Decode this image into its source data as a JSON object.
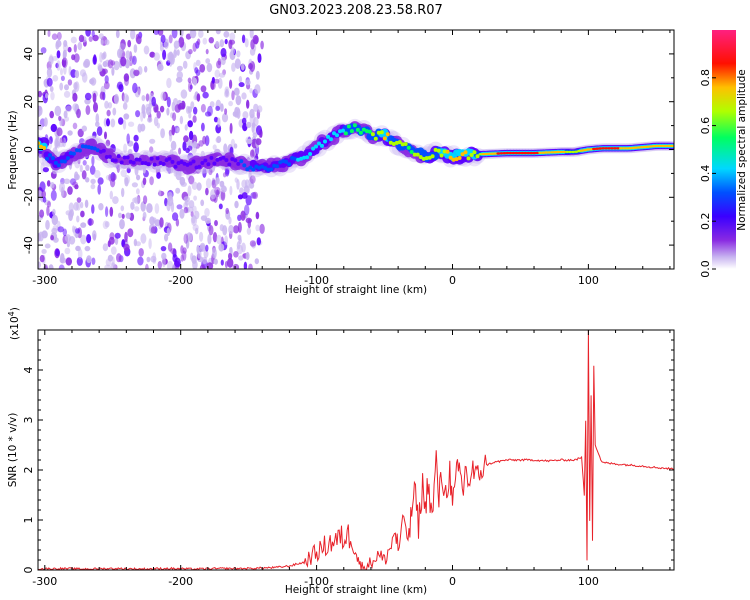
{
  "figure_title": "GN03.2023.208.23.58.R07",
  "colors": {
    "snr_line": "#e8222a",
    "spectrogram_background": "#ffffff",
    "colormap": [
      "#c8b4f0",
      "#8a2be2",
      "#5a00ff",
      "#0050ff",
      "#00d8ff",
      "#00ff60",
      "#b0ff00",
      "#ffc000",
      "#ff1000",
      "#ff2080"
    ]
  },
  "chart_data": [
    {
      "type": "heatmap",
      "title": "",
      "xlabel": "Height of straight line (km)",
      "ylabel": "Frequency (Hz)",
      "xlim": [
        -305,
        163
      ],
      "ylim": [
        -50,
        50
      ],
      "x_ticks": [
        -300,
        -200,
        -100,
        0,
        100
      ],
      "x_tick_labels": [
        "-300",
        "-200",
        "-100",
        "0",
        "100"
      ],
      "y_ticks": [
        -40,
        -20,
        0,
        20,
        40
      ],
      "y_tick_labels": [
        "-40",
        "-20",
        "0",
        "20",
        "40"
      ],
      "grid": false,
      "colorbar": {
        "label": "Normalized spectral amplitude",
        "range": [
          0,
          1
        ],
        "ticks": [
          0.0,
          0.2,
          0.4,
          0.6,
          0.8
        ],
        "tick_labels": [
          "0.0",
          "0.2",
          "0.4",
          "0.6",
          "0.8"
        ]
      },
      "noise_region": {
        "x_range": [
          -305,
          -140
        ],
        "y_range": [
          -50,
          50
        ],
        "amplitude": 0.15
      },
      "ridge": [
        {
          "x": -300,
          "y": -2,
          "amp": 0.3
        },
        {
          "x": -290,
          "y": -6,
          "amp": 0.35
        },
        {
          "x": -280,
          "y": -2,
          "amp": 0.3
        },
        {
          "x": -265,
          "y": 2,
          "amp": 0.3
        },
        {
          "x": -250,
          "y": -4,
          "amp": 0.22
        },
        {
          "x": -230,
          "y": -5,
          "amp": 0.2
        },
        {
          "x": -210,
          "y": -5,
          "amp": 0.22
        },
        {
          "x": -195,
          "y": -7,
          "amp": 0.25
        },
        {
          "x": -170,
          "y": -4,
          "amp": 0.22
        },
        {
          "x": -150,
          "y": -7,
          "amp": 0.3
        },
        {
          "x": -130,
          "y": -7,
          "amp": 0.35
        },
        {
          "x": -110,
          "y": -3,
          "amp": 0.4
        },
        {
          "x": -95,
          "y": 3,
          "amp": 0.45
        },
        {
          "x": -80,
          "y": 8,
          "amp": 0.5
        },
        {
          "x": -70,
          "y": 9,
          "amp": 0.55
        },
        {
          "x": -60,
          "y": 6,
          "amp": 0.6
        },
        {
          "x": -50,
          "y": 6,
          "amp": 0.75
        },
        {
          "x": -40,
          "y": 2,
          "amp": 0.65
        },
        {
          "x": -30,
          "y": 0,
          "amp": 0.6
        },
        {
          "x": -20,
          "y": -3,
          "amp": 0.7
        },
        {
          "x": -10,
          "y": -1,
          "amp": 0.7
        },
        {
          "x": 0,
          "y": -3,
          "amp": 0.75
        },
        {
          "x": 20,
          "y": -2,
          "amp": 0.7
        },
        {
          "x": 40,
          "y": -1.5,
          "amp": 0.9
        },
        {
          "x": 60,
          "y": -1.5,
          "amp": 0.85
        },
        {
          "x": 80,
          "y": -1,
          "amp": 0.75
        },
        {
          "x": 90,
          "y": -1,
          "amp": 0.65
        },
        {
          "x": 100,
          "y": 0,
          "amp": 0.8
        },
        {
          "x": 110,
          "y": 0.5,
          "amp": 0.9
        },
        {
          "x": 130,
          "y": 0.5,
          "amp": 0.8
        },
        {
          "x": 150,
          "y": 1.5,
          "amp": 0.8
        },
        {
          "x": 163,
          "y": 1.5,
          "amp": 0.75
        }
      ]
    },
    {
      "type": "line",
      "title": "",
      "xlabel": "Height of straight line (km)",
      "ylabel": "SNR (10 * v/v)",
      "y_scale_label": "(x10",
      "y_scale_exponent": "4",
      "y_scale_suffix": ")",
      "xlim": [
        -305,
        163
      ],
      "ylim": [
        0,
        4.8
      ],
      "x_ticks": [
        -300,
        -200,
        -100,
        0,
        100
      ],
      "x_tick_labels": [
        "-300",
        "-200",
        "-100",
        "0",
        "100"
      ],
      "y_ticks": [
        0,
        1,
        2,
        3,
        4
      ],
      "y_tick_labels": [
        "0",
        "1",
        "2",
        "3",
        "4"
      ],
      "grid": false,
      "series": [
        {
          "x": [
            -305,
            -290,
            -270,
            -250,
            -230,
            -210,
            -190,
            -170,
            -150,
            -140,
            -130,
            -120,
            -110,
            -105,
            -100,
            -95,
            -90,
            -85,
            -80,
            -75,
            -72,
            -70,
            -68,
            -65,
            -60,
            -55,
            -50,
            -45,
            -42,
            -40,
            -35,
            -32,
            -30,
            -28,
            -25,
            -22,
            -20,
            -18,
            -15,
            -12,
            -10,
            -8,
            -5,
            -2,
            0,
            3,
            5,
            8,
            10,
            12,
            15,
            18,
            20,
            25,
            30,
            40,
            50,
            60,
            70,
            80,
            90,
            95,
            97,
            98,
            99,
            100,
            101,
            102,
            103,
            104,
            105,
            110,
            120,
            130,
            140,
            150,
            163
          ],
          "y": [
            0.02,
            0.03,
            0.02,
            0.03,
            0.02,
            0.03,
            0.02,
            0.03,
            0.03,
            0.04,
            0.05,
            0.08,
            0.15,
            0.25,
            0.35,
            0.45,
            0.55,
            0.6,
            0.65,
            0.7,
            0.5,
            0.25,
            0.1,
            0.05,
            0.15,
            0.3,
            0.2,
            0.5,
            0.8,
            0.4,
            1.0,
            0.6,
            1.2,
            1.6,
            0.9,
            1.7,
            1.2,
            1.8,
            1.0,
            2.2,
            1.4,
            1.9,
            1.5,
            2.0,
            1.2,
            1.9,
            2.0,
            1.6,
            2.1,
            1.7,
            2.0,
            1.8,
            2.0,
            2.1,
            2.15,
            2.2,
            2.2,
            2.2,
            2.18,
            2.2,
            2.2,
            2.25,
            1.5,
            3.0,
            0.2,
            4.8,
            1.0,
            3.5,
            0.6,
            4.1,
            2.5,
            2.15,
            2.12,
            2.1,
            2.08,
            2.05,
            2.02
          ]
        }
      ]
    }
  ]
}
